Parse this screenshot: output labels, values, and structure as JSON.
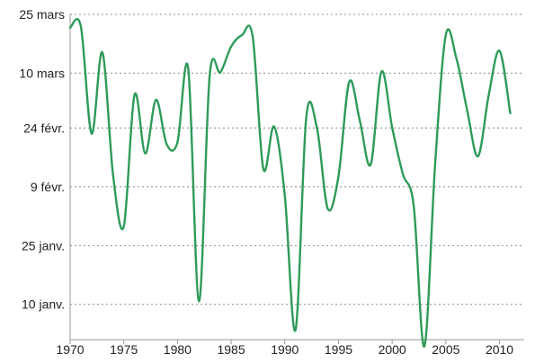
{
  "chart_data": {
    "type": "line",
    "title": "",
    "xlabel": "",
    "ylabel": "",
    "x_ticks": [
      1970,
      1975,
      1980,
      1985,
      1990,
      1995,
      2000,
      2005,
      2010
    ],
    "y_ticks": [
      "10 janv.",
      "25 janv.",
      "9 févr.",
      "24 févr.",
      "10 mars",
      "25 mars"
    ],
    "xlim": [
      1970,
      2012.3
    ],
    "ylim": [
      "1 janv.",
      "25 mars"
    ],
    "y_unit": "day of year (1 = 1 janv.)",
    "y_tick_values": [
      10,
      25,
      40,
      55,
      69,
      84
    ],
    "y_min": 1,
    "y_max": 84,
    "grid": true,
    "series": [
      {
        "name": "",
        "color": "#2e9b5a",
        "points": [
          [
            1970,
            80.6
          ],
          [
            1971,
            80.9
          ],
          [
            1972,
            53.6
          ],
          [
            1973,
            74.3
          ],
          [
            1974,
            43.0
          ],
          [
            1975,
            29.9
          ],
          [
            1976,
            63.5
          ],
          [
            1977,
            48.5
          ],
          [
            1978,
            62.2
          ],
          [
            1979,
            50.8
          ],
          [
            1980,
            51.4
          ],
          [
            1981,
            70.2
          ],
          [
            1982,
            10.8
          ],
          [
            1983,
            68.4
          ],
          [
            1984,
            69.2
          ],
          [
            1985,
            75.8
          ],
          [
            1986,
            78.7
          ],
          [
            1987,
            78.4
          ],
          [
            1988,
            44.6
          ],
          [
            1989,
            55.4
          ],
          [
            1990,
            37.7
          ],
          [
            1991,
            3.5
          ],
          [
            1992,
            57.8
          ],
          [
            1993,
            54.9
          ],
          [
            1994,
            34.4
          ],
          [
            1995,
            42.7
          ],
          [
            1996,
            66.8
          ],
          [
            1997,
            56.7
          ],
          [
            1998,
            45.7
          ],
          [
            1999,
            69.4
          ],
          [
            2000,
            55.1
          ],
          [
            2001,
            43.2
          ],
          [
            2002,
            35.3
          ],
          [
            2003,
            -0.7
          ],
          [
            2004,
            45.7
          ],
          [
            2005,
            78.8
          ],
          [
            2006,
            72.6
          ],
          [
            2007,
            59.3
          ],
          [
            2008,
            47.8
          ],
          [
            2009,
            63.5
          ],
          [
            2010,
            74.7
          ],
          [
            2011,
            58.8
          ]
        ]
      }
    ]
  }
}
